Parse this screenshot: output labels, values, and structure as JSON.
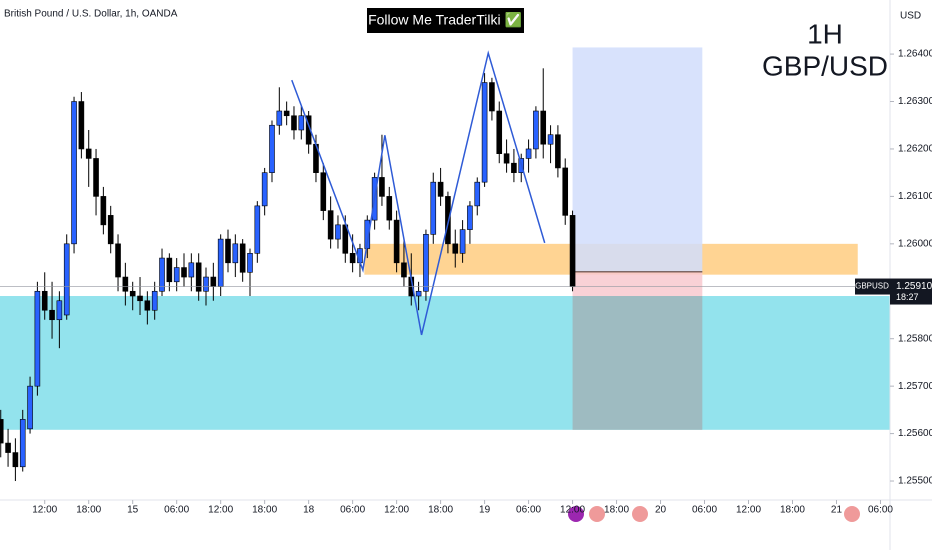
{
  "chart_data": {
    "type": "candlestick",
    "title": "Follow Me TraderTilki ✅",
    "subtitle": "British Pound / U.S. Dollar, 1h, OANDA",
    "annotations": [
      "1H",
      "GBP/USD"
    ],
    "currency": "USD",
    "symbol": "GBPUSD",
    "last_price": {
      "value": 1.2591,
      "label": "1.25910"
    },
    "countdown": "18:27",
    "up_color": "#2962ff",
    "down_color": "#000000",
    "xlim": [
      5.9,
      127.3
    ],
    "ylim": [
      1.2546,
      1.26514
    ],
    "grid": false,
    "xticks": [
      {
        "value": 12,
        "label": "12:00"
      },
      {
        "value": 18,
        "label": "18:00"
      },
      {
        "value": 24,
        "label": "15"
      },
      {
        "value": 30,
        "label": "06:00"
      },
      {
        "value": 36,
        "label": "12:00"
      },
      {
        "value": 42,
        "label": "18:00"
      },
      {
        "value": 48,
        "label": "18"
      },
      {
        "value": 54,
        "label": "06:00"
      },
      {
        "value": 60,
        "label": "12:00"
      },
      {
        "value": 66,
        "label": "18:00"
      },
      {
        "value": 72,
        "label": "19"
      },
      {
        "value": 78,
        "label": "06:00"
      },
      {
        "value": 84,
        "label": "12:00"
      },
      {
        "value": 90,
        "label": "18:00"
      },
      {
        "value": 96,
        "label": "20"
      },
      {
        "value": 102,
        "label": "06:00"
      },
      {
        "value": 108,
        "label": "12:00"
      },
      {
        "value": 114,
        "label": "18:00"
      },
      {
        "value": 120,
        "label": "21"
      },
      {
        "value": 126,
        "label": "06:00"
      }
    ],
    "yticks": [
      {
        "value": 1.264,
        "label": "1.26400"
      },
      {
        "value": 1.263,
        "label": "1.26300"
      },
      {
        "value": 1.262,
        "label": "1.26200"
      },
      {
        "value": 1.261,
        "label": "1.26100"
      },
      {
        "value": 1.26,
        "label": "1.26000"
      },
      {
        "value": 1.258,
        "label": "1.25800"
      },
      {
        "value": 1.257,
        "label": "1.25700"
      },
      {
        "value": 1.256,
        "label": "1.25600"
      },
      {
        "value": 1.255,
        "label": "1.25500"
      }
    ],
    "x": [
      6,
      7,
      8,
      9,
      10,
      11,
      12,
      13,
      14,
      15,
      16,
      17,
      18,
      19,
      20,
      21,
      22,
      23,
      24,
      25,
      26,
      27,
      28,
      29,
      30,
      31,
      32,
      33,
      34,
      35,
      36,
      37,
      38,
      39,
      40,
      41,
      42,
      43,
      44,
      45,
      46,
      47,
      48,
      49,
      50,
      51,
      52,
      53,
      54,
      55,
      56,
      57,
      58,
      59,
      60,
      61,
      62,
      63,
      64,
      65,
      66,
      67,
      68,
      69,
      70,
      71,
      72,
      73,
      74,
      75,
      76,
      77,
      78,
      79,
      80,
      81,
      82,
      83,
      84
    ],
    "open": [
      1.2563,
      1.2558,
      1.2556,
      1.2553,
      1.2561,
      1.257,
      1.259,
      1.2586,
      1.2584,
      1.2585,
      1.26,
      1.263,
      1.262,
      1.2618,
      1.261,
      1.2606,
      1.26,
      1.2593,
      1.259,
      1.2589,
      1.2588,
      1.2586,
      1.259,
      1.2597,
      1.2592,
      1.2595,
      1.2593,
      1.2596,
      1.259,
      1.2593,
      1.2591,
      1.2601,
      1.2596,
      1.26,
      1.2594,
      1.2598,
      1.2608,
      1.2615,
      1.2625,
      1.2628,
      1.2627,
      1.2624,
      1.2627,
      1.2621,
      1.2615,
      1.2607,
      1.2601,
      1.2604,
      1.2598,
      1.2596,
      1.2599,
      1.2605,
      1.2614,
      1.261,
      1.2605,
      1.2596,
      1.2593,
      1.2589,
      1.259,
      1.2602,
      1.2613,
      1.261,
      1.26,
      1.2598,
      1.2603,
      1.2608,
      1.2613,
      1.2634,
      1.2628,
      1.2619,
      1.2617,
      1.2615,
      1.2618,
      1.262,
      1.2628,
      1.2621,
      1.2623,
      1.2616,
      1.2606
    ],
    "high": [
      1.2565,
      1.2561,
      1.2559,
      1.2565,
      1.2572,
      1.2592,
      1.2594,
      1.2592,
      1.259,
      1.2602,
      1.2631,
      1.2632,
      1.2624,
      1.262,
      1.2612,
      1.2608,
      1.2602,
      1.2596,
      1.2592,
      1.2593,
      1.259,
      1.2592,
      1.2599,
      1.2598,
      1.2597,
      1.2598,
      1.2598,
      1.2598,
      1.2595,
      1.2596,
      1.2602,
      1.2603,
      1.2602,
      1.2601,
      1.2599,
      1.2609,
      1.2616,
      1.2626,
      1.2633,
      1.263,
      1.2629,
      1.2629,
      1.2628,
      1.2623,
      1.2617,
      1.261,
      1.2606,
      1.2606,
      1.2602,
      1.26,
      1.2606,
      1.2615,
      1.2623,
      1.2612,
      1.2607,
      1.2601,
      1.2598,
      1.2592,
      1.2603,
      1.2615,
      1.2616,
      1.2611,
      1.2603,
      1.2605,
      1.2609,
      1.2614,
      1.2636,
      1.2635,
      1.263,
      1.2622,
      1.262,
      1.2619,
      1.2622,
      1.2629,
      1.2637,
      1.2625,
      1.2625,
      1.2618,
      1.2607
    ],
    "low": [
      1.2555,
      1.2553,
      1.255,
      1.2552,
      1.256,
      1.2568,
      1.2584,
      1.258,
      1.2578,
      1.2584,
      1.2598,
      1.2618,
      1.2612,
      1.2606,
      1.2602,
      1.2598,
      1.259,
      1.2587,
      1.2586,
      1.2585,
      1.2583,
      1.2584,
      1.2589,
      1.259,
      1.259,
      1.2591,
      1.259,
      1.2588,
      1.2587,
      1.2588,
      1.2589,
      1.2594,
      1.2593,
      1.2592,
      1.2589,
      1.2596,
      1.2606,
      1.2613,
      1.2623,
      1.2625,
      1.2622,
      1.2622,
      1.2619,
      1.2613,
      1.2605,
      1.2599,
      1.2599,
      1.2596,
      1.2594,
      1.2593,
      1.2597,
      1.2603,
      1.2608,
      1.2603,
      1.2594,
      1.2591,
      1.2587,
      1.2586,
      1.2588,
      1.26,
      1.2608,
      1.2598,
      1.2595,
      1.2596,
      1.26,
      1.2606,
      1.2612,
      1.2626,
      1.2617,
      1.2615,
      1.2613,
      1.2613,
      1.2615,
      1.2618,
      1.2618,
      1.2617,
      1.2614,
      1.2604,
      1.259
    ],
    "close": [
      1.2558,
      1.2556,
      1.2553,
      1.2563,
      1.257,
      1.259,
      1.2586,
      1.2584,
      1.2588,
      1.26,
      1.263,
      1.262,
      1.2618,
      1.261,
      1.2604,
      1.26,
      1.2593,
      1.259,
      1.2589,
      1.2588,
      1.2586,
      1.259,
      1.2597,
      1.2592,
      1.2595,
      1.2593,
      1.2596,
      1.259,
      1.2593,
      1.2591,
      1.2601,
      1.2596,
      1.26,
      1.2594,
      1.2598,
      1.2608,
      1.2615,
      1.2625,
      1.2628,
      1.2627,
      1.2624,
      1.2627,
      1.2621,
      1.2615,
      1.2607,
      1.2601,
      1.2604,
      1.2598,
      1.2596,
      1.2599,
      1.2605,
      1.2614,
      1.261,
      1.2605,
      1.2596,
      1.2593,
      1.2589,
      1.259,
      1.2602,
      1.2613,
      1.261,
      1.26,
      1.2598,
      1.2603,
      1.2608,
      1.2613,
      1.2634,
      1.2628,
      1.2619,
      1.2617,
      1.2615,
      1.2618,
      1.262,
      1.2628,
      1.2621,
      1.2623,
      1.2616,
      1.2606,
      1.2591
    ],
    "zones": [
      {
        "x": [
          5.9,
          127.3
        ],
        "y": [
          1.25608,
          1.2589
        ],
        "color": "#80deea"
      },
      {
        "x": [
          55.6,
          122.9
        ],
        "y": [
          1.25935,
          1.26
        ],
        "color": "#ffcc80"
      },
      {
        "x": [
          84.0,
          101.7
        ],
        "y": [
          1.25941,
          1.26414
        ],
        "color": "#d1ddfb"
      },
      {
        "x": [
          84.0,
          101.7
        ],
        "y": [
          1.2589,
          1.25941
        ],
        "color": "#f8c9cf"
      },
      {
        "x": [
          84.0,
          101.7
        ],
        "y": [
          1.25608,
          1.2589
        ],
        "color": "#a0b4b8"
      }
    ],
    "entry_level": 1.25941,
    "pattern_line": {
      "x": [
        45.7,
        55.4,
        58.4,
        63.4,
        72.5,
        80.2
      ],
      "y": [
        1.26345,
        1.25945,
        1.26229,
        1.25808,
        1.26402,
        1.26002
      ],
      "color": "#2f5bd6"
    }
  }
}
